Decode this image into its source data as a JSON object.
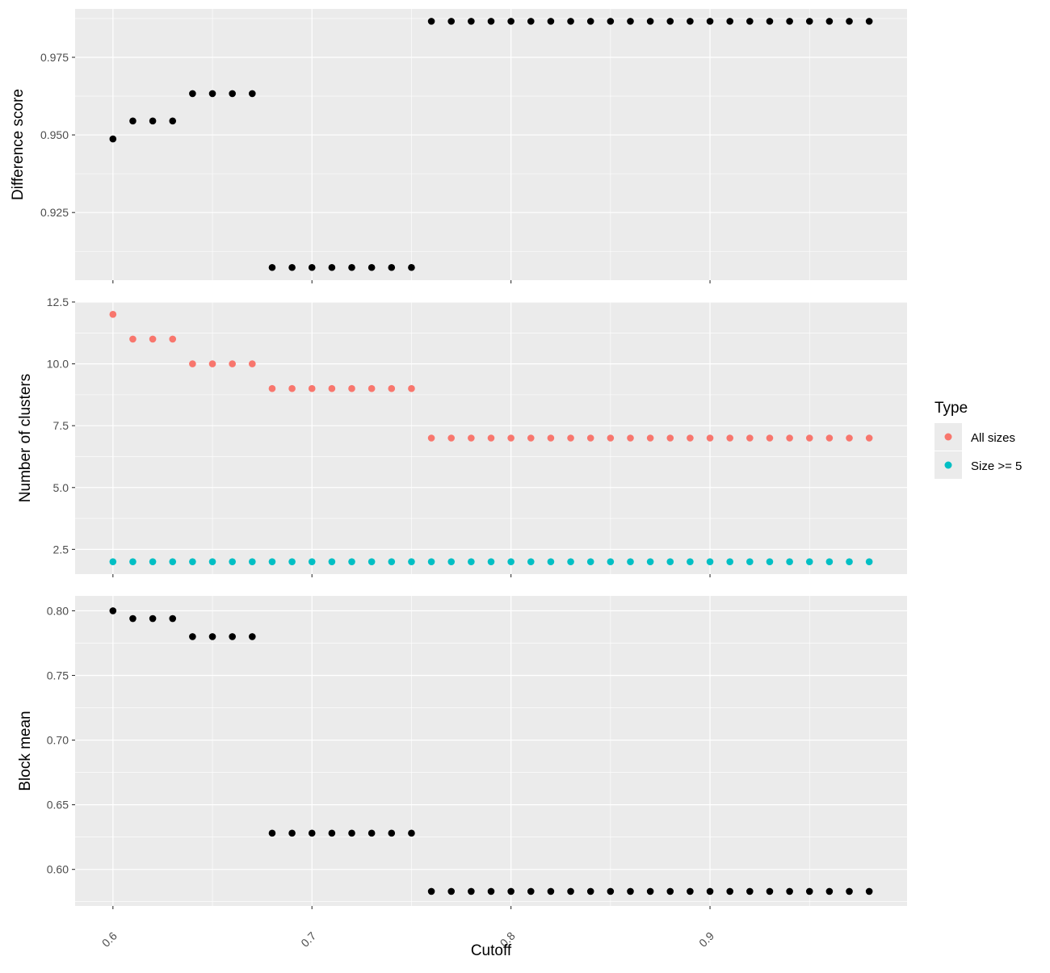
{
  "chart_data": {
    "type": "scatter",
    "xlabel": "Cutoff",
    "x_ticks": [
      "0.6",
      "0.7",
      "0.8",
      "0.9"
    ],
    "x_tick_values": [
      0.6,
      0.7,
      0.8,
      0.9
    ],
    "xlim": [
      0.581,
      0.999
    ],
    "grid": true,
    "legend": {
      "title": "Type",
      "position": "right",
      "entries": [
        {
          "label": "All sizes",
          "color": "#F8766D"
        },
        {
          "label": "Size >= 5",
          "color": "#00BFC4"
        }
      ]
    },
    "x": [
      0.6,
      0.61,
      0.62,
      0.63,
      0.64,
      0.65,
      0.66,
      0.67,
      0.68,
      0.69,
      0.7,
      0.71,
      0.72,
      0.73,
      0.74,
      0.75,
      0.76,
      0.77,
      0.78,
      0.79,
      0.8,
      0.81,
      0.82,
      0.83,
      0.84,
      0.85,
      0.86,
      0.87,
      0.88,
      0.89,
      0.9,
      0.91,
      0.92,
      0.93,
      0.94,
      0.95,
      0.96,
      0.97,
      0.98
    ],
    "panels": [
      {
        "ylabel": "Difference score",
        "y_ticks": [
          "0.925",
          "0.950",
          "0.975"
        ],
        "y_tick_values": [
          0.925,
          0.95,
          0.975
        ],
        "ylim": [
          0.9032,
          0.9906
        ],
        "series": [
          {
            "color": "#000000",
            "values": [
              0.9487,
              0.9545,
              0.9545,
              0.9545,
              0.9633,
              0.9633,
              0.9633,
              0.9633,
              0.9073,
              0.9073,
              0.9073,
              0.9073,
              0.9073,
              0.9073,
              0.9073,
              0.9073,
              0.9866,
              0.9866,
              0.9866,
              0.9866,
              0.9866,
              0.9866,
              0.9866,
              0.9866,
              0.9866,
              0.9866,
              0.9866,
              0.9866,
              0.9866,
              0.9866,
              0.9866,
              0.9866,
              0.9866,
              0.9866,
              0.9866,
              0.9866,
              0.9866,
              0.9866,
              0.9866
            ]
          }
        ]
      },
      {
        "ylabel": "Number of clusters",
        "y_ticks": [
          "2.5",
          "5.0",
          "7.5",
          "10.0",
          "12.5"
        ],
        "y_tick_values": [
          2.5,
          5.0,
          7.5,
          10.0,
          12.5
        ],
        "ylim": [
          1.5,
          12.5
        ],
        "series": [
          {
            "name": "All sizes",
            "color": "#F8766D",
            "values": [
              12,
              11,
              11,
              11,
              10,
              10,
              10,
              10,
              9,
              9,
              9,
              9,
              9,
              9,
              9,
              9,
              7,
              7,
              7,
              7,
              7,
              7,
              7,
              7,
              7,
              7,
              7,
              7,
              7,
              7,
              7,
              7,
              7,
              7,
              7,
              7,
              7,
              7,
              7
            ]
          },
          {
            "name": "Size >= 5",
            "color": "#00BFC4",
            "values": [
              2,
              2,
              2,
              2,
              2,
              2,
              2,
              2,
              2,
              2,
              2,
              2,
              2,
              2,
              2,
              2,
              2,
              2,
              2,
              2,
              2,
              2,
              2,
              2,
              2,
              2,
              2,
              2,
              2,
              2,
              2,
              2,
              2,
              2,
              2,
              2,
              2,
              2,
              2
            ]
          }
        ]
      },
      {
        "ylabel": "Block mean",
        "y_ticks": [
          "0.60",
          "0.65",
          "0.70",
          "0.75",
          "0.80"
        ],
        "y_tick_values": [
          0.6,
          0.65,
          0.7,
          0.75,
          0.8
        ],
        "ylim": [
          0.5717,
          0.8115
        ],
        "series": [
          {
            "color": "#000000",
            "values": [
              0.8,
              0.794,
              0.794,
              0.794,
              0.78,
              0.78,
              0.78,
              0.78,
              0.628,
              0.628,
              0.628,
              0.628,
              0.628,
              0.628,
              0.628,
              0.628,
              0.583,
              0.583,
              0.583,
              0.583,
              0.583,
              0.583,
              0.583,
              0.583,
              0.583,
              0.583,
              0.583,
              0.583,
              0.583,
              0.583,
              0.583,
              0.583,
              0.583,
              0.583,
              0.583,
              0.583,
              0.583,
              0.583,
              0.583
            ]
          }
        ]
      }
    ]
  }
}
